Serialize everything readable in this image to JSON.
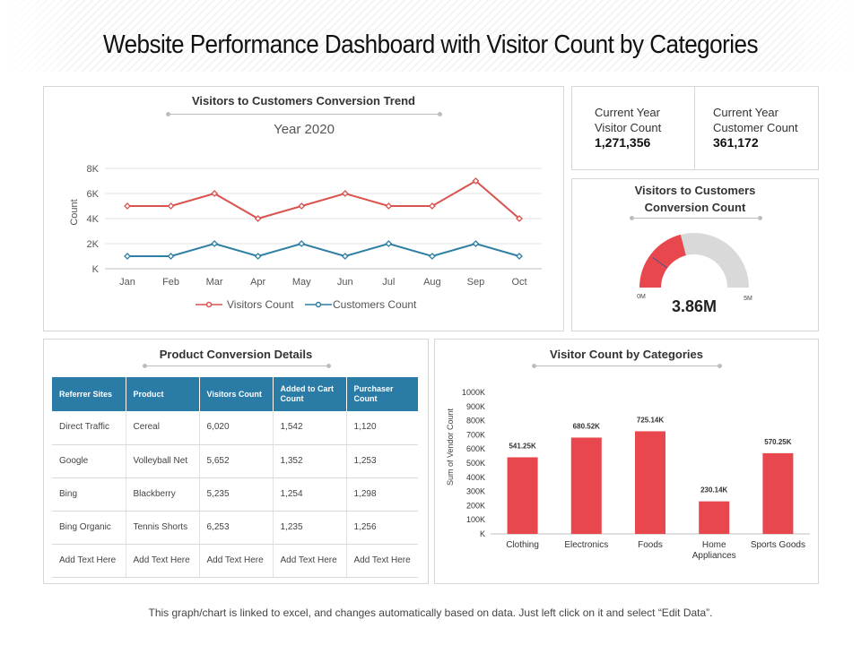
{
  "page": {
    "title": "Website Performance Dashboard with Visitor Count by Categories",
    "footer": "This graph/chart is linked to excel, and changes automatically based on data. Just left click on it and select “Edit Data”."
  },
  "kpis": [
    {
      "label_line1": "Current Year",
      "label_line2": "Visitor Count",
      "value": "1,271,356"
    },
    {
      "label_line1": "Current Year",
      "label_line2": "Customer Count",
      "value": "361,172"
    }
  ],
  "gauge": {
    "title_line1": "Visitors to Customers",
    "title_line2": "Conversion Count",
    "min_label": "0M",
    "max_label": "5M",
    "value_label": "3.86M",
    "min": 0,
    "max": 5,
    "filled_fraction": 0.42,
    "needle_fraction": 0.2,
    "fill_color": "#e8474d",
    "track_color": "#d9d9d9"
  },
  "table": {
    "title": "Product Conversion Details",
    "header_color": "#2a7ba6",
    "columns": [
      "Referrer Sites",
      "Product",
      "Visitors Count",
      "Added to Cart Count",
      "Purchaser Count"
    ],
    "rows": [
      [
        "Direct Traffic",
        "Cereal",
        "6,020",
        "1,542",
        "1,120"
      ],
      [
        "Google",
        "Volleyball Net",
        "5,652",
        "1,352",
        "1,253"
      ],
      [
        "Bing",
        "Blackberry",
        "5,235",
        "1,254",
        "1,298"
      ],
      [
        "Bing Organic",
        "Tennis Shorts",
        "6,253",
        "1,235",
        "1,256"
      ],
      [
        "Add Text Here",
        "Add Text Here",
        "Add Text Here",
        "Add Text Here",
        "Add Text Here"
      ]
    ]
  },
  "chart_data": [
    {
      "type": "line",
      "title": "Visitors to Customers Conversion Trend",
      "subtitle": "Year 2020",
      "xlabel": "",
      "ylabel": "Count",
      "categories": [
        "Jan",
        "Feb",
        "Mar",
        "Apr",
        "May",
        "Jun",
        "Jul",
        "Aug",
        "Sep",
        "Oct"
      ],
      "ylim": [
        0,
        8000
      ],
      "yticks": [
        0,
        2000,
        4000,
        6000,
        8000
      ],
      "ytick_labels": [
        "K",
        "2K",
        "4K",
        "6K",
        "8K"
      ],
      "grid": true,
      "legend_position": "bottom",
      "series": [
        {
          "name": "Visitors Count",
          "color": "#d9534f",
          "values": [
            5000,
            5000,
            6000,
            4000,
            5000,
            6000,
            5000,
            5000,
            7000,
            4000
          ]
        },
        {
          "name": "Customers Count",
          "color": "#2e7fa3",
          "values": [
            1000,
            1000,
            2000,
            1000,
            2000,
            1000,
            2000,
            1000,
            2000,
            1000
          ]
        }
      ]
    },
    {
      "type": "bar",
      "title": "Visitor Count by Categories",
      "xlabel": "",
      "ylabel": "Sum of Vendor Count",
      "categories": [
        "Clothing",
        "Electronics",
        "Foods",
        "Home Appliances",
        "Sports Goods"
      ],
      "category_lines": [
        [
          "Clothing"
        ],
        [
          "Electronics"
        ],
        [
          "Foods"
        ],
        [
          "Home",
          "Appliances"
        ],
        [
          "Sports Goods"
        ]
      ],
      "values": [
        541250,
        680520,
        725140,
        230140,
        570250
      ],
      "data_labels": [
        "541.25K",
        "680.52K",
        "725.14K",
        "230.14K",
        "570.25K"
      ],
      "ylim": [
        0,
        1000000
      ],
      "yticks": [
        0,
        100000,
        200000,
        300000,
        400000,
        500000,
        600000,
        700000,
        800000,
        900000,
        1000000
      ],
      "ytick_labels": [
        "K",
        "100K",
        "200K",
        "300K",
        "400K",
        "500K",
        "600K",
        "700K",
        "800K",
        "900K",
        "1000K"
      ],
      "color": "#e8474d",
      "grid": false
    }
  ]
}
